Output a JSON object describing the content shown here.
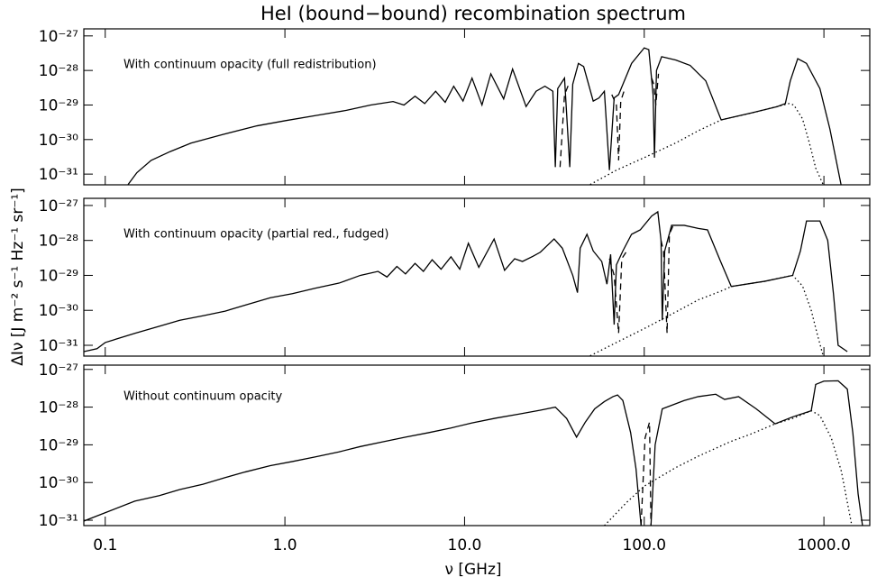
{
  "title": "HeI (bound−bound) recombination spectrum",
  "ylabel": "ΔIν [J m⁻² s⁻¹ Hz⁻¹ sr⁻¹]",
  "xlabel": "ν [GHz]",
  "chart_data": [
    {
      "type": "line",
      "annotation": "With continuum opacity (full redistribution)",
      "xlog": true,
      "ylog": true,
      "xlim": [
        0.076,
        1800
      ],
      "xticks": [
        0.1,
        {
          "value": 1,
          "label": "1.0"
        },
        {
          "value": 10,
          "label": "10.0"
        },
        {
          "value": 100,
          "label": "100.0"
        },
        {
          "value": 1000,
          "label": "1000.0"
        }
      ],
      "xticklabels": false,
      "ylim": [
        4.9e-32,
        1.6e-27
      ],
      "yticks": [
        {
          "value": 1e-27,
          "label": "10⁻²⁷"
        },
        {
          "value": 1e-28,
          "label": "10⁻²⁸"
        },
        {
          "value": 1e-29,
          "label": "10⁻²⁹"
        },
        {
          "value": 1e-30,
          "label": "10⁻³⁰"
        },
        {
          "value": 1e-31,
          "label": "10⁻³¹"
        }
      ],
      "series": [
        {
          "style": "solid",
          "color": "#000000",
          "x": [
            0.134,
            0.15,
            0.18,
            0.23,
            0.3,
            0.45,
            0.7,
            1.0,
            1.5,
            2.2,
            3.0,
            4.0,
            4.6,
            5.3,
            6.0,
            6.9,
            7.8,
            8.7,
            9.8,
            11,
            12.5,
            14,
            16.5,
            18.5,
            22,
            25,
            28,
            31,
            32,
            33,
            36,
            38.5,
            40,
            43,
            46,
            52,
            56,
            60,
            64,
            68,
            72,
            85,
            100,
            106,
            112,
            114,
            117,
            125,
            150,
            180,
            220,
            268,
            400,
            550,
            610,
            650,
            715,
            800,
            950,
            1080,
            1245
          ],
          "values": [
            5e-32,
            1.1e-31,
            2.5e-31,
            4.5e-31,
            7.9e-31,
            1.4e-30,
            2.5e-30,
            3.5e-30,
            5e-30,
            7e-30,
            1e-29,
            1.26e-29,
            1e-29,
            1.8e-29,
            1.1e-29,
            2.5e-29,
            1.2e-29,
            3.5e-29,
            1.3e-29,
            6e-29,
            1e-29,
            8e-29,
            1.5e-29,
            1.1e-28,
            9e-30,
            2.5e-29,
            3.5e-29,
            2.5e-29,
            1.6e-31,
            3e-29,
            6e-29,
            1.6e-31,
            4e-29,
            1.6e-28,
            1.3e-28,
            1.3e-29,
            1.6e-29,
            2.5e-29,
            1.3e-31,
            1.6e-29,
            2e-29,
            1.6e-28,
            4.5e-28,
            4e-28,
            2e-29,
            3e-31,
            1e-28,
            2.5e-28,
            2e-28,
            1.4e-28,
            5e-29,
            3.7e-30,
            6e-30,
            9e-30,
            1.1e-29,
            5e-29,
            2.2e-28,
            1.6e-28,
            3e-29,
            2e-30,
            5e-32
          ]
        },
        {
          "style": "dashed",
          "color": "#000000",
          "x": [
            34,
            36,
            38,
            null,
            66,
            70,
            72,
            74,
            78,
            null,
            110,
            113,
            116,
            120
          ],
          "values": [
            1.6e-31,
            2e-29,
            4e-29,
            null,
            2e-29,
            1e-29,
            2.5e-31,
            1.3e-29,
            3e-29,
            null,
            6e-29,
            4e-29,
            1e-29,
            8e-29
          ]
        },
        {
          "style": "dotted",
          "color": "#000000",
          "x": [
            50,
            70,
            100,
            150,
            200,
            268,
            400,
            550,
            640,
            680,
            760,
            830,
            900,
            990
          ],
          "values": [
            5e-32,
            1.3e-31,
            3e-31,
            8e-31,
            1.8e-30,
            3.7e-30,
            6e-30,
            9e-30,
            1.1e-29,
            1e-29,
            4e-30,
            8e-31,
            1.5e-31,
            5e-32
          ]
        }
      ]
    },
    {
      "type": "line",
      "annotation": "With continuum opacity (partial red., fudged)",
      "xlog": true,
      "ylog": true,
      "xlim": [
        0.076,
        1800
      ],
      "xticks": [
        0.1,
        {
          "value": 1,
          "label": "1.0"
        },
        {
          "value": 10,
          "label": "10.0"
        },
        {
          "value": 100,
          "label": "100.0"
        },
        {
          "value": 1000,
          "label": "1000.0"
        }
      ],
      "xticklabels": false,
      "ylim": [
        4.9e-32,
        1.6e-27
      ],
      "yticks": [
        {
          "value": 1e-27,
          "label": "10⁻²⁷"
        },
        {
          "value": 1e-28,
          "label": "10⁻²⁸"
        },
        {
          "value": 1e-29,
          "label": "10⁻²⁹"
        },
        {
          "value": 1e-30,
          "label": "10⁻³⁰"
        },
        {
          "value": 1e-31,
          "label": "10⁻³¹"
        }
      ],
      "series": [
        {
          "style": "solid",
          "color": "#000000",
          "x": [
            0.076,
            0.09,
            0.1,
            0.146,
            0.2,
            0.26,
            0.35,
            0.465,
            0.6,
            0.83,
            1.1,
            1.48,
            2.0,
            2.63,
            3.3,
            3.7,
            4.2,
            4.69,
            5.3,
            5.9,
            6.6,
            7.4,
            8.4,
            9.4,
            10.5,
            12,
            14.6,
            16.7,
            19,
            21,
            24,
            26.4,
            31.5,
            35,
            40,
            42.5,
            44,
            48,
            52,
            58,
            62,
            65,
            68,
            70,
            76,
            85,
            95,
            110,
            119,
            124,
            126,
            130,
            142,
            167,
            200,
            225,
            266,
            305,
            470,
            670,
            740,
            800,
            950,
            1050,
            1130,
            1200,
            1350
          ],
          "values": [
            6.6e-32,
            8e-32,
            1.2e-31,
            2.2e-31,
            3.5e-31,
            5.2e-31,
            7e-31,
            9.5e-31,
            1.4e-30,
            2.3e-30,
            3e-30,
            4.3e-30,
            6e-30,
            1e-29,
            1.3e-29,
            9e-30,
            1.8e-29,
            1.1e-29,
            2.2e-29,
            1.3e-29,
            2.8e-29,
            1.5e-29,
            3.4e-29,
            1.5e-29,
            8.3e-29,
            1.7e-29,
            1.1e-28,
            1.4e-29,
            3e-29,
            2.5e-29,
            3.5e-29,
            4.6e-29,
            1.1e-28,
            6e-29,
            1e-29,
            3.2e-30,
            6e-29,
            1.5e-28,
            5e-29,
            2.5e-29,
            5.6e-30,
            4e-29,
            3.9e-31,
            2e-29,
            5e-29,
            1.5e-28,
            2e-28,
            5e-28,
            6.6e-28,
            1e-28,
            5.2e-31,
            5e-29,
            2.7e-28,
            2.7e-28,
            2.2e-28,
            2e-28,
            2.5e-29,
            4.8e-30,
            6.8e-30,
            1e-29,
            5e-29,
            3.6e-28,
            3.6e-28,
            1e-28,
            3e-30,
            1e-31,
            6.6e-32
          ]
        },
        {
          "style": "dashed",
          "color": "#000000",
          "x": [
            64,
            68,
            72,
            75,
            80,
            null,
            124,
            128,
            134,
            138,
            145
          ],
          "values": [
            3e-29,
            1e-29,
            2.2e-31,
            3e-29,
            5e-29,
            null,
            1e-28,
            5e-29,
            2.2e-31,
            1.5e-28,
            2.7e-28
          ]
        },
        {
          "style": "dotted",
          "color": "#000000",
          "x": [
            50,
            70,
            100,
            150,
            200,
            266,
            305,
            470,
            670,
            760,
            850,
            920,
            990
          ],
          "values": [
            5e-32,
            1.2e-31,
            3e-31,
            9e-31,
            2e-30,
            3.5e-30,
            4.8e-30,
            6.8e-30,
            1e-29,
            5e-30,
            1e-30,
            2e-31,
            5e-32
          ]
        }
      ]
    },
    {
      "type": "line",
      "annotation": "Without continuum opacity",
      "xlog": true,
      "ylog": true,
      "xlim": [
        0.076,
        1800
      ],
      "xticks": [
        0.1,
        {
          "value": 1,
          "label": "1.0"
        },
        {
          "value": 10,
          "label": "10.0"
        },
        {
          "value": 100,
          "label": "100.0"
        },
        {
          "value": 1000,
          "label": "1000.0"
        }
      ],
      "xticklabels": true,
      "ylim": [
        7.2e-32,
        1.3e-27
      ],
      "yticks": [
        {
          "value": 1e-27,
          "label": "10⁻²⁷"
        },
        {
          "value": 1e-28,
          "label": "10⁻²⁸"
        },
        {
          "value": 1e-29,
          "label": "10⁻²⁹"
        },
        {
          "value": 1e-30,
          "label": "10⁻³⁰"
        },
        {
          "value": 1e-31,
          "label": "10⁻³¹"
        }
      ],
      "series": [
        {
          "style": "solid",
          "color": "#000000",
          "x": [
            0.076,
            0.09,
            0.104,
            0.146,
            0.2,
            0.26,
            0.35,
            0.465,
            0.6,
            0.83,
            1.1,
            1.48,
            2.0,
            2.63,
            3.5,
            4.69,
            6.3,
            8.4,
            11,
            14.9,
            20,
            26.4,
            32,
            37,
            42,
            47,
            53,
            60,
            67,
            71,
            76,
            84,
            90,
            96,
            null,
            109,
            115,
            126,
            167,
            200,
            250,
            280,
            335,
            420,
            535,
            670,
            850,
            900,
            1000,
            1200,
            1350,
            1450,
            1550,
            1640
          ],
          "values": [
            9.5e-32,
            1.3e-31,
            1.7e-31,
            3.2e-31,
            4.5e-31,
            6.5e-31,
            9e-31,
            1.35e-30,
            1.9e-30,
            2.8e-30,
            3.6e-30,
            4.8e-30,
            6.5e-30,
            9e-30,
            1.2e-29,
            1.6e-29,
            2.1e-29,
            2.8e-29,
            3.8e-29,
            5.1e-29,
            6.5e-29,
            8.3e-29,
            1e-28,
            5e-29,
            1.6e-29,
            4e-29,
            9e-29,
            1.4e-28,
            1.9e-28,
            2.1e-28,
            1.5e-28,
            2.1e-29,
            2.3e-30,
            7.2e-32,
            null,
            7.2e-32,
            1e-29,
            9e-29,
            1.5e-28,
            1.9e-28,
            2.2e-28,
            1.6e-28,
            1.9e-28,
            9e-29,
            3.6e-29,
            5.5e-29,
            8e-29,
            4e-28,
            4.9e-28,
            5e-28,
            3e-28,
            2e-29,
            5e-31,
            7.2e-32
          ]
        },
        {
          "style": "dashed",
          "color": "#000000",
          "x": [
            96,
            101,
            107,
            109
          ],
          "values": [
            7.2e-32,
            1.5e-29,
            4e-29,
            7.2e-32
          ]
        },
        {
          "style": "dotted",
          "color": "#000000",
          "x": [
            60,
            80,
            100,
            150,
            200,
            300,
            400,
            535,
            670,
            850,
            950,
            1100,
            1250,
            1430
          ],
          "values": [
            7.2e-32,
            3e-31,
            8e-31,
            2.5e-30,
            5e-30,
            1.2e-29,
            2e-29,
            3.6e-29,
            5e-29,
            8e-29,
            6e-29,
            1.5e-29,
            2e-30,
            7.2e-32
          ]
        }
      ]
    }
  ]
}
